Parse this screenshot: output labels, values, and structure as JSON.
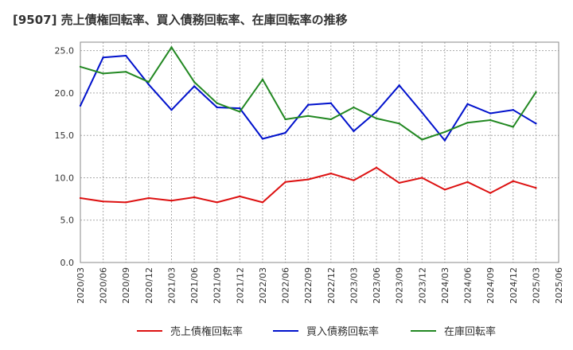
{
  "chart_data": {
    "type": "line",
    "title": "[9507]  売上債権回転率、買入債務回転率、在庫回転率の推移",
    "xlabel": "",
    "ylabel": "",
    "ylim": [
      0,
      26
    ],
    "yticks": [
      0,
      5,
      10,
      15,
      20,
      25
    ],
    "ytick_labels": [
      "0.0",
      "5.0",
      "10.0",
      "15.0",
      "20.0",
      "25.0"
    ],
    "grid": true,
    "legend_position": "bottom",
    "categories": [
      "2020/03",
      "2020/06",
      "2020/09",
      "2020/12",
      "2021/03",
      "2021/06",
      "2021/09",
      "2021/12",
      "2022/03",
      "2022/06",
      "2022/09",
      "2022/12",
      "2023/03",
      "2023/06",
      "2023/09",
      "2023/12",
      "2024/03",
      "2024/06",
      "2024/09",
      "2024/12",
      "2025/03",
      "2025/06"
    ],
    "series": [
      {
        "name": "売上債権回転率",
        "color": "#dd1111",
        "values": [
          7.6,
          7.2,
          7.1,
          7.6,
          7.3,
          7.7,
          7.1,
          7.8,
          7.1,
          9.5,
          9.8,
          10.5,
          9.7,
          11.2,
          9.4,
          10.0,
          8.6,
          9.5,
          8.2,
          9.6,
          8.8,
          null
        ]
      },
      {
        "name": "買入債務回転率",
        "color": "#0011cc",
        "values": [
          18.5,
          24.2,
          24.4,
          21.0,
          18.0,
          20.8,
          18.3,
          18.2,
          14.6,
          15.3,
          18.6,
          18.8,
          15.5,
          17.8,
          20.9,
          17.7,
          14.4,
          18.7,
          17.6,
          18.0,
          16.4,
          null
        ]
      },
      {
        "name": "在庫回転率",
        "color": "#228822",
        "values": [
          23.1,
          22.3,
          22.5,
          21.3,
          25.4,
          21.3,
          18.8,
          17.8,
          21.6,
          16.9,
          17.3,
          16.9,
          18.3,
          17.0,
          16.4,
          14.5,
          15.4,
          16.5,
          16.8,
          16.0,
          20.1,
          null
        ]
      }
    ]
  }
}
